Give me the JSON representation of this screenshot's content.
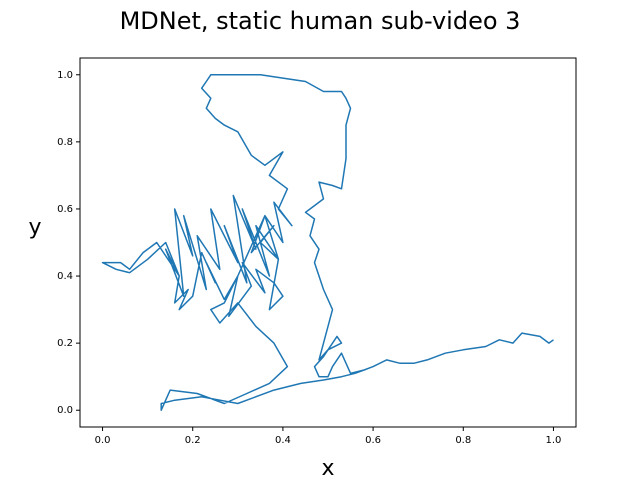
{
  "chart_data": {
    "type": "line",
    "title": "MDNet, static human sub-video 3",
    "xlabel": "x",
    "ylabel": "y",
    "xlim": [
      -0.05,
      1.05
    ],
    "ylim": [
      -0.05,
      1.05
    ],
    "xticks": [
      {
        "value": 0,
        "label": "0.0"
      },
      {
        "value": 0.2,
        "label": "0.2"
      },
      {
        "value": 0.4,
        "label": "0.4"
      },
      {
        "value": 0.6,
        "label": "0.6"
      },
      {
        "value": 0.8,
        "label": "0.8"
      },
      {
        "value": 1,
        "label": "1.0"
      }
    ],
    "yticks": [
      {
        "value": 0,
        "label": "0.0"
      },
      {
        "value": 0.2,
        "label": "0.2"
      },
      {
        "value": 0.4,
        "label": "0.4"
      },
      {
        "value": 0.6,
        "label": "0.6"
      },
      {
        "value": 0.8,
        "label": "0.8"
      },
      {
        "value": 1,
        "label": "1.0"
      }
    ],
    "color": "#1f77b4",
    "x": [
      1.0,
      0.99,
      0.97,
      0.93,
      0.91,
      0.88,
      0.85,
      0.8,
      0.76,
      0.72,
      0.69,
      0.66,
      0.63,
      0.6,
      0.58,
      0.55,
      0.53,
      0.51,
      0.5,
      0.48,
      0.47,
      0.49,
      0.52,
      0.53,
      0.5,
      0.48,
      0.51,
      0.49,
      0.48,
      0.47,
      0.48,
      0.46,
      0.47,
      0.45,
      0.46,
      0.49,
      0.48,
      0.51,
      0.53,
      0.54,
      0.54,
      0.55,
      0.54,
      0.53,
      0.49,
      0.45,
      0.4,
      0.35,
      0.3,
      0.24,
      0.23,
      0.22,
      0.24,
      0.23,
      0.25,
      0.27,
      0.3,
      0.33,
      0.36,
      0.4,
      0.37,
      0.41,
      0.39,
      0.42,
      0.38,
      0.4,
      0.36,
      0.39,
      0.34,
      0.37,
      0.31,
      0.34,
      0.29,
      0.32,
      0.27,
      0.3,
      0.24,
      0.26,
      0.21,
      0.23,
      0.18,
      0.2,
      0.16,
      0.18,
      0.14,
      0.17,
      0.12,
      0.09,
      0.06,
      0.04,
      0.0,
      0.03,
      0.06,
      0.1,
      0.14,
      0.17,
      0.16,
      0.19,
      0.17,
      0.2,
      0.22,
      0.25,
      0.23,
      0.27,
      0.3,
      0.28,
      0.33,
      0.31,
      0.36,
      0.34,
      0.38,
      0.4,
      0.37,
      0.39,
      0.35,
      0.38,
      0.33,
      0.36,
      0.3,
      0.27,
      0.24,
      0.26,
      0.3,
      0.34,
      0.38,
      0.41,
      0.37,
      0.32,
      0.27,
      0.21,
      0.15,
      0.13,
      0.13,
      0.16,
      0.22,
      0.3,
      0.38,
      0.44,
      0.49,
      0.53,
      0.56,
      0.58
    ],
    "y": [
      0.21,
      0.2,
      0.22,
      0.23,
      0.2,
      0.21,
      0.19,
      0.18,
      0.17,
      0.15,
      0.14,
      0.14,
      0.15,
      0.13,
      0.12,
      0.11,
      0.17,
      0.13,
      0.1,
      0.1,
      0.13,
      0.16,
      0.22,
      0.2,
      0.18,
      0.15,
      0.3,
      0.36,
      0.4,
      0.44,
      0.48,
      0.52,
      0.57,
      0.59,
      0.6,
      0.63,
      0.68,
      0.67,
      0.66,
      0.75,
      0.85,
      0.9,
      0.93,
      0.95,
      0.95,
      0.98,
      0.99,
      1.0,
      1.0,
      1.0,
      0.98,
      0.96,
      0.93,
      0.9,
      0.87,
      0.85,
      0.83,
      0.76,
      0.73,
      0.77,
      0.7,
      0.66,
      0.6,
      0.55,
      0.62,
      0.5,
      0.58,
      0.45,
      0.55,
      0.4,
      0.6,
      0.48,
      0.64,
      0.38,
      0.55,
      0.44,
      0.6,
      0.42,
      0.52,
      0.36,
      0.58,
      0.46,
      0.6,
      0.34,
      0.48,
      0.4,
      0.5,
      0.47,
      0.42,
      0.44,
      0.44,
      0.42,
      0.41,
      0.45,
      0.5,
      0.4,
      0.32,
      0.36,
      0.3,
      0.34,
      0.47,
      0.38,
      0.44,
      0.33,
      0.4,
      0.28,
      0.37,
      0.44,
      0.35,
      0.42,
      0.38,
      0.34,
      0.3,
      0.45,
      0.5,
      0.55,
      0.47,
      0.58,
      0.4,
      0.32,
      0.3,
      0.26,
      0.32,
      0.25,
      0.2,
      0.13,
      0.08,
      0.05,
      0.02,
      0.05,
      0.06,
      0.0,
      0.02,
      0.03,
      0.04,
      0.02,
      0.06,
      0.08,
      0.09,
      0.1,
      0.11,
      0.12
    ]
  }
}
